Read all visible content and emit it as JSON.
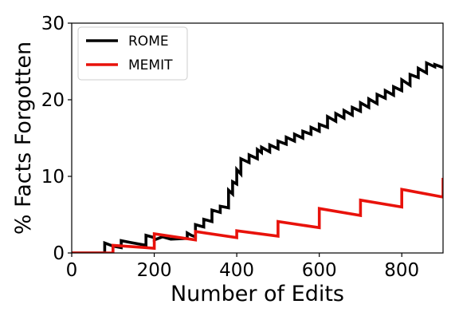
{
  "chart_data": {
    "type": "line",
    "xlabel": "Number of Edits",
    "ylabel": "% Facts Forgotten",
    "xlim": [
      0,
      900
    ],
    "ylim": [
      0,
      30
    ],
    "xticks": [
      0,
      200,
      400,
      600,
      800
    ],
    "yticks": [
      0,
      10,
      20,
      30
    ],
    "grid": false,
    "legend": "top-left",
    "series": [
      {
        "name": "ROME",
        "color": "#000000",
        "points": [
          [
            0,
            0
          ],
          [
            80,
            0
          ],
          [
            80,
            1.3
          ],
          [
            100,
            0.9
          ],
          [
            120,
            0.7
          ],
          [
            120,
            1.6
          ],
          [
            140,
            1.4
          ],
          [
            160,
            1.2
          ],
          [
            180,
            1.0
          ],
          [
            180,
            2.3
          ],
          [
            200,
            2.0
          ],
          [
            200,
            1.7
          ],
          [
            220,
            2.1
          ],
          [
            240,
            1.8
          ],
          [
            280,
            1.9
          ],
          [
            280,
            2.6
          ],
          [
            290,
            2.3
          ],
          [
            300,
            2.1
          ],
          [
            300,
            3.7
          ],
          [
            320,
            3.4
          ],
          [
            320,
            4.4
          ],
          [
            340,
            4.1
          ],
          [
            340,
            5.6
          ],
          [
            360,
            5.3
          ],
          [
            360,
            6.1
          ],
          [
            380,
            5.9
          ],
          [
            380,
            8.2
          ],
          [
            390,
            7.7
          ],
          [
            390,
            9.3
          ],
          [
            400,
            9.0
          ],
          [
            400,
            10.9
          ],
          [
            410,
            10.3
          ],
          [
            410,
            12.3
          ],
          [
            430,
            11.8
          ],
          [
            430,
            12.8
          ],
          [
            450,
            12.3
          ],
          [
            450,
            13.5
          ],
          [
            460,
            13.1
          ],
          [
            460,
            13.8
          ],
          [
            480,
            13.2
          ],
          [
            480,
            14.1
          ],
          [
            500,
            13.6
          ],
          [
            500,
            14.6
          ],
          [
            520,
            14.2
          ],
          [
            520,
            15.1
          ],
          [
            540,
            14.6
          ],
          [
            540,
            15.5
          ],
          [
            560,
            15.0
          ],
          [
            560,
            15.9
          ],
          [
            580,
            15.5
          ],
          [
            580,
            16.4
          ],
          [
            600,
            15.9
          ],
          [
            600,
            16.8
          ],
          [
            620,
            16.4
          ],
          [
            620,
            17.8
          ],
          [
            640,
            17.2
          ],
          [
            640,
            18.2
          ],
          [
            660,
            17.6
          ],
          [
            660,
            18.6
          ],
          [
            680,
            18.0
          ],
          [
            680,
            19.0
          ],
          [
            700,
            18.5
          ],
          [
            700,
            19.6
          ],
          [
            720,
            19.0
          ],
          [
            720,
            20.1
          ],
          [
            740,
            19.5
          ],
          [
            740,
            20.7
          ],
          [
            760,
            20.2
          ],
          [
            760,
            21.2
          ],
          [
            780,
            20.6
          ],
          [
            780,
            21.7
          ],
          [
            800,
            21.2
          ],
          [
            800,
            22.6
          ],
          [
            820,
            21.9
          ],
          [
            820,
            23.3
          ],
          [
            840,
            22.9
          ],
          [
            840,
            24.1
          ],
          [
            860,
            23.5
          ],
          [
            860,
            24.8
          ],
          [
            880,
            24.3
          ],
          [
            880,
            24.6
          ],
          [
            900,
            24.2
          ]
        ]
      },
      {
        "name": "MEMIT",
        "color": "#e8120b",
        "points": [
          [
            0,
            0
          ],
          [
            100,
            0
          ],
          [
            100,
            1.0
          ],
          [
            180,
            0.7
          ],
          [
            200,
            0.6
          ],
          [
            200,
            2.5
          ],
          [
            300,
            1.7
          ],
          [
            300,
            2.8
          ],
          [
            400,
            2.0
          ],
          [
            400,
            2.9
          ],
          [
            500,
            2.2
          ],
          [
            500,
            4.1
          ],
          [
            600,
            3.3
          ],
          [
            600,
            5.8
          ],
          [
            700,
            4.9
          ],
          [
            700,
            6.9
          ],
          [
            800,
            6.0
          ],
          [
            800,
            8.3
          ],
          [
            900,
            7.3
          ],
          [
            900,
            9.8
          ]
        ]
      }
    ]
  }
}
